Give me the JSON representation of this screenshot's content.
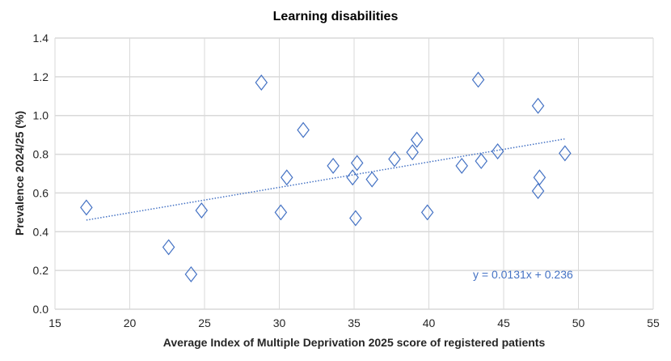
{
  "chart_data": {
    "type": "scatter",
    "title": "Learning disabilities",
    "xlabel": "Average Index of Multiple Deprivation 2025 score of registered patients",
    "ylabel": "Prevalence 2024/25 (%)",
    "xlim": [
      15,
      55
    ],
    "ylim": [
      0,
      1.4
    ],
    "x_ticks": [
      "15",
      "20",
      "25",
      "30",
      "35",
      "40",
      "45",
      "50",
      "55"
    ],
    "y_ticks": [
      "0.0",
      "0.2",
      "0.4",
      "0.6",
      "0.8",
      "1.0",
      "1.2",
      "1.4"
    ],
    "grid": true,
    "marker": "diamond-open",
    "color": "#4472c4",
    "points": [
      [
        17.1,
        0.525
      ],
      [
        22.6,
        0.32
      ],
      [
        24.1,
        0.18
      ],
      [
        24.8,
        0.51
      ],
      [
        28.8,
        1.17
      ],
      [
        30.1,
        0.5
      ],
      [
        30.5,
        0.68
      ],
      [
        31.6,
        0.925
      ],
      [
        33.6,
        0.74
      ],
      [
        34.9,
        0.68
      ],
      [
        35.2,
        0.755
      ],
      [
        35.1,
        0.47
      ],
      [
        36.2,
        0.67
      ],
      [
        37.7,
        0.775
      ],
      [
        38.9,
        0.81
      ],
      [
        39.2,
        0.875
      ],
      [
        39.9,
        0.5
      ],
      [
        42.2,
        0.74
      ],
      [
        43.3,
        1.185
      ],
      [
        43.5,
        0.765
      ],
      [
        44.6,
        0.815
      ],
      [
        47.3,
        1.05
      ],
      [
        47.4,
        0.68
      ],
      [
        47.3,
        0.61
      ],
      [
        49.1,
        0.805
      ]
    ],
    "trendline": {
      "type": "linear",
      "slope": 0.0131,
      "intercept": 0.236,
      "x_range": [
        17.1,
        49.1
      ],
      "style": "dotted",
      "equation_label": "y = 0.0131x + 0.236"
    }
  }
}
